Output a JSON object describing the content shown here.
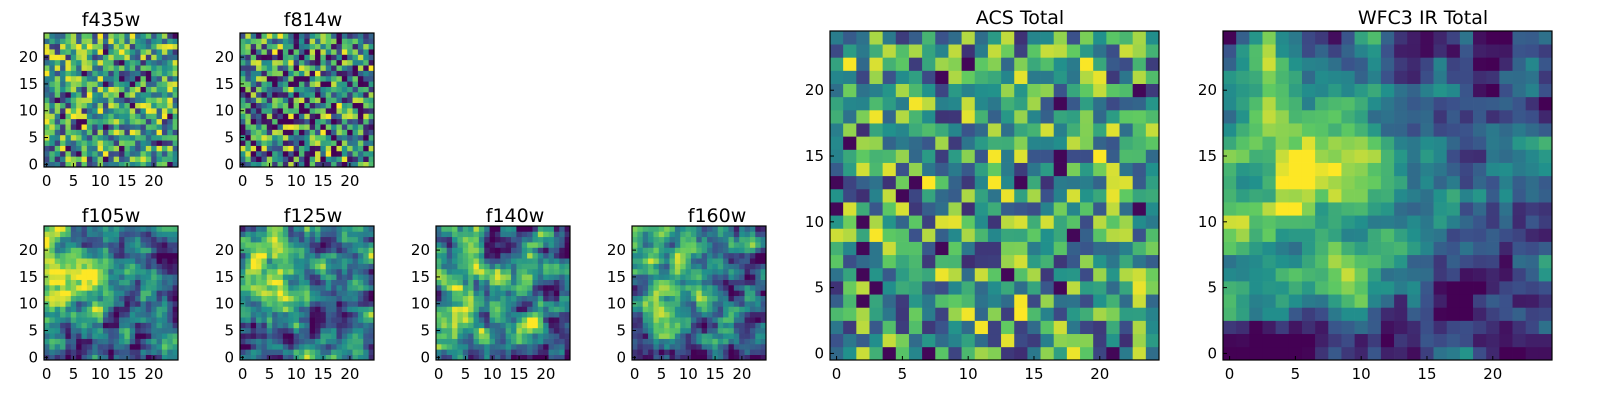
{
  "chart_data": [
    {
      "type": "heatmap",
      "title": "f435w",
      "size": 25,
      "seed": 11,
      "variant": "noisy-high",
      "x_ticks": [
        "0",
        "5",
        "10",
        "15",
        "20"
      ],
      "y_ticks": [
        "0",
        "5",
        "10",
        "15",
        "20"
      ]
    },
    {
      "type": "heatmap",
      "title": "f814w",
      "size": 25,
      "seed": 23,
      "variant": "noisy-mixed",
      "x_ticks": [
        "0",
        "5",
        "10",
        "15",
        "20"
      ],
      "y_ticks": [
        "0",
        "5",
        "10",
        "15",
        "20"
      ]
    },
    {
      "type": "heatmap",
      "title": "f105w",
      "size": 25,
      "seed": 37,
      "variant": "smooth-bright-upper-left",
      "x_ticks": [
        "0",
        "5",
        "10",
        "15",
        "20"
      ],
      "y_ticks": [
        "0",
        "5",
        "10",
        "15",
        "20"
      ]
    },
    {
      "type": "heatmap",
      "title": "f125w",
      "size": 25,
      "seed": 41,
      "variant": "smooth-bright-upper-left",
      "x_ticks": [
        "0",
        "5",
        "10",
        "15",
        "20"
      ],
      "y_ticks": [
        "0",
        "5",
        "10",
        "15",
        "20"
      ]
    },
    {
      "type": "heatmap",
      "title": "f140w",
      "size": 25,
      "seed": 53,
      "variant": "smooth-mixed",
      "x_ticks": [
        "0",
        "5",
        "10",
        "15",
        "20"
      ],
      "y_ticks": [
        "0",
        "5",
        "10",
        "15",
        "20"
      ]
    },
    {
      "type": "heatmap",
      "title": "f160w",
      "size": 25,
      "seed": 67,
      "variant": "smooth-bright-upper-left",
      "x_ticks": [
        "0",
        "5",
        "10",
        "15",
        "20"
      ],
      "y_ticks": [
        "0",
        "5",
        "10",
        "15",
        "20"
      ]
    },
    {
      "type": "heatmap",
      "title": "ACS Total",
      "size": 25,
      "seed": 79,
      "variant": "noisy-high",
      "x_ticks": [
        "0",
        "5",
        "10",
        "15",
        "20"
      ],
      "y_ticks": [
        "0",
        "5",
        "10",
        "15",
        "20"
      ]
    },
    {
      "type": "heatmap",
      "title": "WFC3 IR Total",
      "size": 25,
      "seed": 97,
      "variant": "bright-upper-left-dark-right",
      "x_ticks": [
        "0",
        "5",
        "10",
        "15",
        "20"
      ],
      "y_ticks": [
        "0",
        "5",
        "10",
        "15",
        "20"
      ]
    }
  ],
  "colormap": [
    "#440154",
    "#3b528b",
    "#21918c",
    "#5ec962",
    "#fde725"
  ]
}
